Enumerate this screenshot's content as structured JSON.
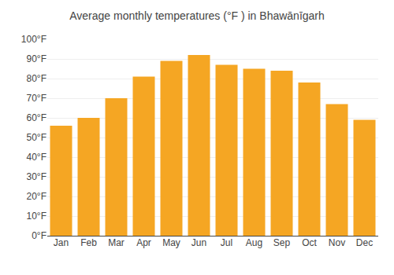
{
  "chart_data": {
    "type": "bar",
    "title": "Average monthly temperatures (°F ) in Bhawānīgarh",
    "categories": [
      "Jan",
      "Feb",
      "Mar",
      "Apr",
      "May",
      "Jun",
      "Jul",
      "Aug",
      "Sep",
      "Oct",
      "Nov",
      "Dec"
    ],
    "values": [
      56,
      60,
      70,
      81,
      89,
      92,
      87,
      85,
      84,
      78,
      67,
      59
    ],
    "color": "#F5A623",
    "ylim": [
      0,
      100
    ],
    "yticks": [
      {
        "value": 0,
        "label": "0°F"
      },
      {
        "value": 10,
        "label": "10°F"
      },
      {
        "value": 20,
        "label": "20°F"
      },
      {
        "value": 30,
        "label": "30°F"
      },
      {
        "value": 40,
        "label": "40°F"
      },
      {
        "value": 50,
        "label": "50°F"
      },
      {
        "value": 60,
        "label": "60°F"
      },
      {
        "value": 70,
        "label": "70°F"
      },
      {
        "value": 80,
        "label": "80°F"
      },
      {
        "value": 90,
        "label": "90°F"
      },
      {
        "value": 100,
        "label": "100°F"
      }
    ],
    "grid": true
  }
}
